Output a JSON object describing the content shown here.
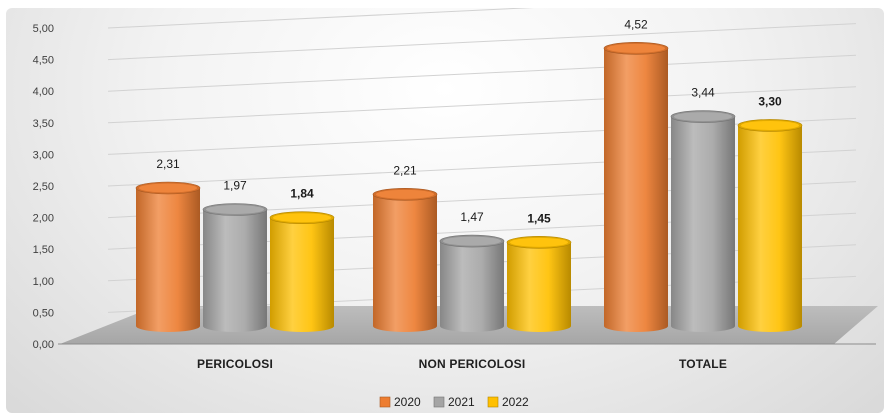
{
  "chart_data": {
    "type": "bar",
    "categories": [
      "PERICOLOSI",
      "NON  PERICOLOSI",
      "TOTALE"
    ],
    "series": [
      {
        "name": "2020",
        "values": [
          2.31,
          2.21,
          4.52
        ],
        "labels": [
          "2,31",
          "2,21",
          "4,52"
        ],
        "color": "#ED7D31"
      },
      {
        "name": "2021",
        "values": [
          1.97,
          1.47,
          3.44
        ],
        "labels": [
          "1,97",
          "1,47",
          "3,44"
        ],
        "color": "#A5A5A5"
      },
      {
        "name": "2022",
        "values": [
          1.84,
          1.45,
          3.3
        ],
        "labels": [
          "1,84",
          "1,45",
          "3,30"
        ],
        "color": "#FFC000",
        "label_color": "#E8202A"
      }
    ],
    "ylim": [
      0,
      5
    ],
    "yticks": [
      "0,00",
      "0,50",
      "1,00",
      "1,50",
      "2,00",
      "2,50",
      "3,00",
      "3,50",
      "4,00",
      "4,50",
      "5,00"
    ],
    "grid": true,
    "legend_position": "bottom",
    "bar_shape": "cylinder"
  }
}
